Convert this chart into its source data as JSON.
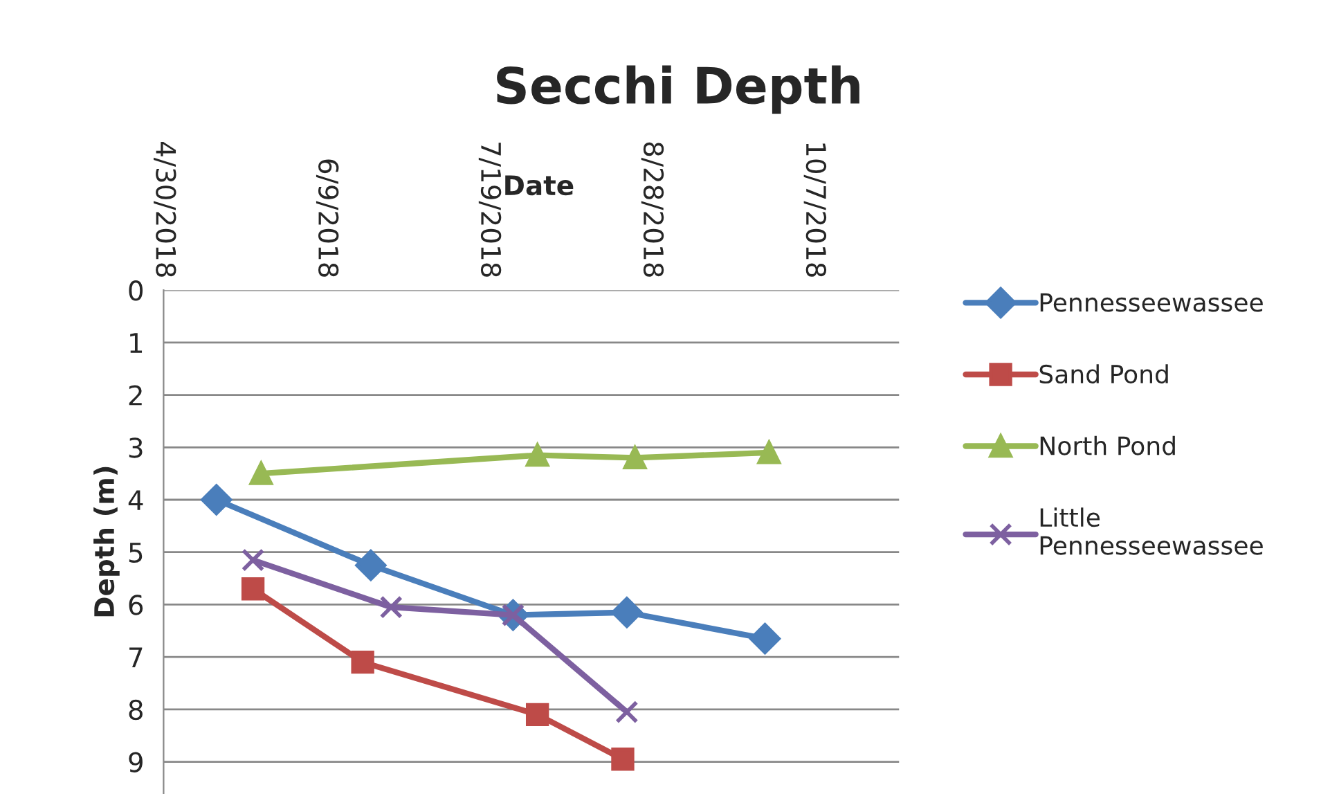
{
  "chart_data": {
    "type": "line",
    "title": "Secchi Depth",
    "xlabel": "Date",
    "ylabel": "Depth (m)",
    "xlim": [
      "2018-04-30",
      "2018-10-28"
    ],
    "xticks": [
      {
        "value": "2018-04-30",
        "label": "4/30/2018"
      },
      {
        "value": "2018-06-09",
        "label": "6/9/2018"
      },
      {
        "value": "2018-07-19",
        "label": "7/19/2018"
      },
      {
        "value": "2018-08-28",
        "label": "8/28/2018"
      },
      {
        "value": "2018-10-07",
        "label": "10/7/2018"
      }
    ],
    "ylim": [
      9.6,
      0
    ],
    "yticks": [
      0,
      1,
      2,
      3,
      4,
      5,
      6,
      7,
      8,
      9
    ],
    "grid": "y",
    "legend": "right",
    "series": [
      {
        "name": "Pennesseewassee",
        "color": "#4a7ebb",
        "marker": "diamond",
        "x": [
          "2018-05-13",
          "2018-06-20",
          "2018-07-25",
          "2018-08-22",
          "2018-09-25"
        ],
        "values": [
          4.0,
          5.25,
          6.2,
          6.15,
          6.65
        ]
      },
      {
        "name": "Sand Pond",
        "color": "#be4b48",
        "marker": "square",
        "x": [
          "2018-05-22",
          "2018-06-18",
          "2018-07-31",
          "2018-08-21"
        ],
        "values": [
          5.7,
          7.1,
          8.1,
          8.95
        ]
      },
      {
        "name": "North Pond",
        "color": "#98b954",
        "marker": "triangle",
        "x": [
          "2018-05-24",
          "2018-07-31",
          "2018-08-24",
          "2018-09-26"
        ],
        "values": [
          3.5,
          3.15,
          3.2,
          3.1
        ]
      },
      {
        "name": "Little Pennesseewassee",
        "color": "#7d60a0",
        "marker": "cross",
        "x": [
          "2018-05-22",
          "2018-06-25",
          "2018-07-25",
          "2018-08-22"
        ],
        "values": [
          5.15,
          6.05,
          6.2,
          8.05
        ]
      }
    ]
  }
}
